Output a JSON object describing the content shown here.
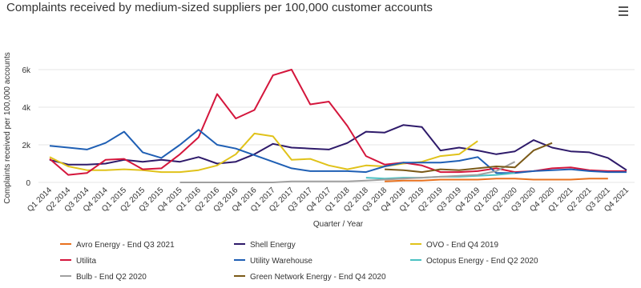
{
  "chart_data": {
    "type": "line",
    "title": "Complaints received by medium-sized suppliers per 100,000 customer accounts",
    "x_label": "Quarter / Year",
    "y_label": "Complaints received per 100,000 accounts",
    "categories": [
      "Q1 2014",
      "Q2 2014",
      "Q3 2014",
      "Q4 2014",
      "Q1 2015",
      "Q2 2015",
      "Q3 2015",
      "Q4 2015",
      "Q1 2016",
      "Q2 2016",
      "Q3 2016",
      "Q4 2016",
      "Q1 2017",
      "Q2 2017",
      "Q3 2017",
      "Q4 2017",
      "Q1 2018",
      "Q2 2018",
      "Q3 2018",
      "Q4 2018",
      "Q1 2019",
      "Q2 2019",
      "Q3 2019",
      "Q4 2019",
      "Q1 2020",
      "Q2 2020",
      "Q3 2020",
      "Q4 2020",
      "Q1 2021",
      "Q2 2021",
      "Q3 2021",
      "Q4 2021"
    ],
    "ylim": [
      0,
      6000
    ],
    "yticks": [
      0,
      {
        "value": 2000,
        "label": "2k"
      },
      {
        "value": 4000,
        "label": "4k"
      },
      {
        "value": 6000,
        "label": "6k"
      }
    ],
    "grid": true,
    "legend": "bottom",
    "series": [
      {
        "name": "Avro Energy - End Q3 2021",
        "color": "#e8711e",
        "values": [
          null,
          null,
          null,
          null,
          null,
          null,
          null,
          null,
          null,
          null,
          null,
          null,
          null,
          null,
          null,
          null,
          null,
          null,
          50,
          100,
          100,
          150,
          150,
          150,
          200,
          200,
          150,
          150,
          150,
          200,
          200,
          null
        ]
      },
      {
        "name": "Shell Energy",
        "color": "#2e1a6a",
        "values": [
          1200,
          950,
          950,
          1000,
          1200,
          1100,
          1200,
          1100,
          1350,
          1000,
          1100,
          1500,
          2050,
          1850,
          1800,
          1750,
          2100,
          2700,
          2650,
          3050,
          2950,
          1700,
          1850,
          1700,
          1500,
          1650,
          2250,
          1850,
          1650,
          1600,
          1300,
          650
        ]
      },
      {
        "name": "OVO - End Q4 2019",
        "color": "#e0c21a",
        "values": [
          1350,
          850,
          650,
          650,
          700,
          650,
          550,
          550,
          650,
          900,
          1500,
          2600,
          2450,
          1200,
          1250,
          900,
          700,
          900,
          850,
          1000,
          1100,
          1400,
          1500,
          2200,
          null,
          null,
          null,
          null,
          null,
          null,
          null,
          null
        ]
      },
      {
        "name": "Utilita",
        "color": "#d4163c",
        "values": [
          1250,
          400,
          500,
          1200,
          1250,
          700,
          750,
          1500,
          2400,
          4700,
          3400,
          3850,
          5700,
          6000,
          4150,
          4300,
          3000,
          1400,
          950,
          1050,
          900,
          550,
          550,
          600,
          750,
          550,
          600,
          750,
          800,
          650,
          600,
          600
        ]
      },
      {
        "name": "Utility Warehouse",
        "color": "#1f5fb4",
        "values": [
          1950,
          1850,
          1750,
          2100,
          2700,
          1600,
          1300,
          2000,
          2800,
          2000,
          1800,
          1450,
          1100,
          750,
          600,
          600,
          600,
          550,
          850,
          1050,
          1050,
          1050,
          1150,
          1350,
          500,
          500,
          600,
          650,
          700,
          600,
          550,
          550
        ]
      },
      {
        "name": "Octopus Energy - End Q2 2020",
        "color": "#4bc1c3",
        "values": [
          null,
          null,
          null,
          null,
          null,
          null,
          null,
          null,
          null,
          null,
          null,
          null,
          null,
          null,
          null,
          null,
          null,
          250,
          200,
          250,
          250,
          300,
          300,
          350,
          400,
          500,
          null,
          null,
          null,
          null,
          null,
          null
        ]
      },
      {
        "name": "Bulb - End Q2 2020",
        "color": "#a0a0a0",
        "values": [
          null,
          null,
          null,
          null,
          null,
          null,
          null,
          0,
          0,
          0,
          0,
          0,
          0,
          50,
          50,
          50,
          50,
          100,
          150,
          200,
          250,
          300,
          350,
          400,
          600,
          1100,
          null,
          null,
          null,
          null,
          null,
          null
        ]
      },
      {
        "name": "Green Network Energy - End Q4 2020",
        "color": "#7b5a18",
        "values": [
          null,
          null,
          null,
          null,
          null,
          null,
          null,
          null,
          null,
          null,
          null,
          null,
          null,
          null,
          null,
          null,
          null,
          null,
          700,
          650,
          550,
          700,
          650,
          750,
          850,
          800,
          1700,
          2100,
          null,
          null,
          null,
          null
        ]
      }
    ]
  }
}
